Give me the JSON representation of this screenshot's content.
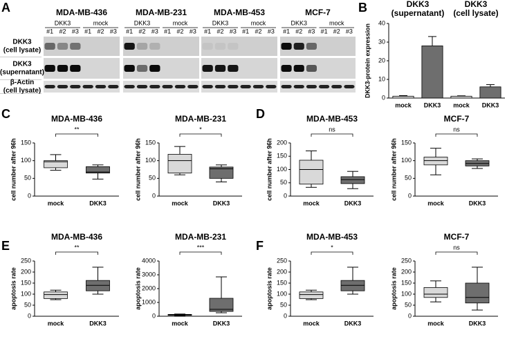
{
  "panel_labels": [
    "A",
    "B",
    "C",
    "D",
    "E",
    "F"
  ],
  "blot": {
    "cell_lines": [
      "MDA-MB-436",
      "MDA-MB-231",
      "MDA-MB-453",
      "MCF-7"
    ],
    "groups": [
      "DKK3",
      "mock"
    ],
    "lanes": [
      "#1",
      "#2",
      "#3",
      "#1",
      "#2",
      "#3"
    ],
    "rows": [
      [
        "DKK3",
        "(cell lysate)"
      ],
      [
        "DKK3",
        "(supernatant)"
      ],
      [
        "β-Actin",
        "(cell lysate)"
      ]
    ]
  },
  "chart_data": [
    {
      "type": "bar",
      "groups": [
        [
          "DKK3",
          "(supernatant)"
        ],
        [
          "DKK3",
          "(cell lysate)"
        ]
      ],
      "categories": [
        "mock",
        "DKK3",
        "mock",
        "DKK3"
      ],
      "values": [
        1,
        28,
        1,
        6
      ],
      "errors": [
        0.3,
        5,
        0.2,
        1.2
      ],
      "colors": [
        "#d9d9d9",
        "#6e6e6e",
        "#d9d9d9",
        "#6e6e6e"
      ],
      "ylabel": "DKK3-protein expression",
      "ylim": [
        0,
        40
      ],
      "yticks": [
        0,
        10,
        20,
        30,
        40
      ]
    },
    {
      "type": "box",
      "title": "MDA-MB-436",
      "categories": [
        "mock",
        "DKK3"
      ],
      "annotation": "**",
      "min": [
        73,
        48
      ],
      "q1": [
        80,
        65
      ],
      "median": [
        97,
        68
      ],
      "q3": [
        100,
        83
      ],
      "max": [
        117,
        88
      ],
      "colors": [
        "#d9d9d9",
        "#6e6e6e"
      ],
      "ylabel": "cell number after 96h",
      "ylim": [
        0,
        150
      ],
      "yticks": [
        0,
        50,
        100,
        150
      ]
    },
    {
      "type": "box",
      "title": "MDA-MB-231",
      "categories": [
        "mock",
        "DKK3"
      ],
      "annotation": "*",
      "min": [
        60,
        40
      ],
      "q1": [
        65,
        50
      ],
      "median": [
        100,
        77
      ],
      "q3": [
        118,
        82
      ],
      "max": [
        140,
        88
      ],
      "colors": [
        "#d9d9d9",
        "#6e6e6e"
      ],
      "ylabel": "cell number after 96h",
      "ylim": [
        0,
        150
      ],
      "yticks": [
        0,
        50,
        100,
        150
      ]
    },
    {
      "type": "box",
      "title": "MDA-MB-453",
      "categories": [
        "mock",
        "DKK3"
      ],
      "annotation": "ns",
      "min": [
        33,
        28
      ],
      "q1": [
        45,
        47
      ],
      "median": [
        100,
        62
      ],
      "q3": [
        135,
        73
      ],
      "max": [
        170,
        93
      ],
      "colors": [
        "#d9d9d9",
        "#6e6e6e"
      ],
      "ylabel": "cell number after 96h",
      "ylim": [
        0,
        200
      ],
      "yticks": [
        0,
        50,
        100,
        150,
        200
      ]
    },
    {
      "type": "box",
      "title": "MCF-7",
      "categories": [
        "mock",
        "DKK3"
      ],
      "annotation": "ns",
      "min": [
        60,
        78
      ],
      "q1": [
        88,
        85
      ],
      "median": [
        100,
        92
      ],
      "q3": [
        110,
        100
      ],
      "max": [
        135,
        105
      ],
      "colors": [
        "#d9d9d9",
        "#6e6e6e"
      ],
      "ylabel": "cell number after 96h",
      "ylim": [
        0,
        150
      ],
      "yticks": [
        0,
        50,
        100,
        150
      ]
    },
    {
      "type": "box",
      "title": "MDA-MB-436",
      "categories": [
        "mock",
        "DKK3"
      ],
      "annotation": "**",
      "min": [
        75,
        100
      ],
      "q1": [
        80,
        115
      ],
      "median": [
        98,
        140
      ],
      "q3": [
        110,
        162
      ],
      "max": [
        118,
        222
      ],
      "colors": [
        "#d9d9d9",
        "#6e6e6e"
      ],
      "ylabel": "apoptosis rate",
      "ylim": [
        0,
        250
      ],
      "yticks": [
        0,
        50,
        100,
        150,
        200,
        250
      ]
    },
    {
      "type": "box",
      "title": "MDA-MB-231",
      "categories": [
        "mock",
        "DKK3"
      ],
      "annotation": "***",
      "min": [
        50,
        250
      ],
      "q1": [
        70,
        350
      ],
      "median": [
        100,
        500
      ],
      "q3": [
        130,
        1300
      ],
      "max": [
        160,
        2850
      ],
      "colors": [
        "#d9d9d9",
        "#6e6e6e"
      ],
      "ylabel": "apoptosis rate",
      "ylim": [
        0,
        4000
      ],
      "yticks": [
        0,
        1000,
        2000,
        3000,
        4000
      ]
    },
    {
      "type": "box",
      "title": "MDA-MB-453",
      "categories": [
        "mock",
        "DKK3"
      ],
      "annotation": "*",
      "min": [
        75,
        100
      ],
      "q1": [
        80,
        115
      ],
      "median": [
        98,
        140
      ],
      "q3": [
        110,
        162
      ],
      "max": [
        118,
        222
      ],
      "colors": [
        "#d9d9d9",
        "#6e6e6e"
      ],
      "ylabel": "apoptosis rate",
      "ylim": [
        0,
        250
      ],
      "yticks": [
        0,
        50,
        100,
        150,
        200,
        250
      ]
    },
    {
      "type": "box",
      "title": "MCF-7",
      "categories": [
        "mock",
        "DKK3"
      ],
      "annotation": "ns",
      "min": [
        65,
        28
      ],
      "q1": [
        85,
        60
      ],
      "median": [
        100,
        85
      ],
      "q3": [
        130,
        150
      ],
      "max": [
        160,
        222
      ],
      "colors": [
        "#d9d9d9",
        "#6e6e6e"
      ],
      "ylabel": "apoptosis rate",
      "ylim": [
        0,
        250
      ],
      "yticks": [
        0,
        50,
        100,
        150,
        200,
        250
      ]
    }
  ]
}
